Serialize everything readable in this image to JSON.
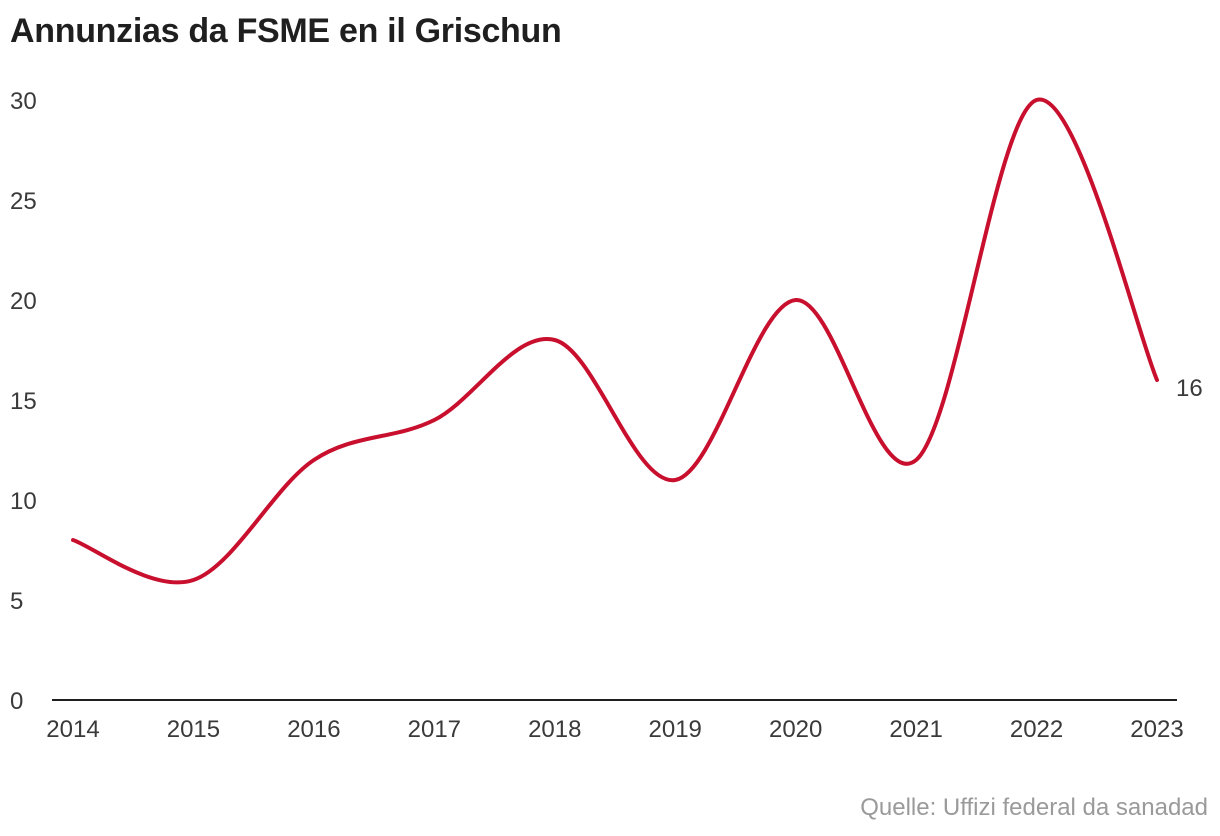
{
  "chart_data": {
    "type": "line",
    "title": "Annunzias da FSME en il Grischun",
    "categories": [
      "2014",
      "2015",
      "2016",
      "2017",
      "2018",
      "2019",
      "2020",
      "2021",
      "2022",
      "2023"
    ],
    "series": [
      {
        "name": "Annunzias",
        "values": [
          8,
          6,
          12,
          14,
          18,
          11,
          20,
          12,
          30,
          16
        ]
      }
    ],
    "ylim": [
      0,
      30
    ],
    "yticks": [
      "0",
      "5",
      "10",
      "15",
      "20",
      "25",
      "30"
    ],
    "xlabel": "",
    "ylabel": "",
    "end_label": "16",
    "line_color": "#c8102e",
    "source": "Quelle: Uffizi federal da sanadad"
  }
}
